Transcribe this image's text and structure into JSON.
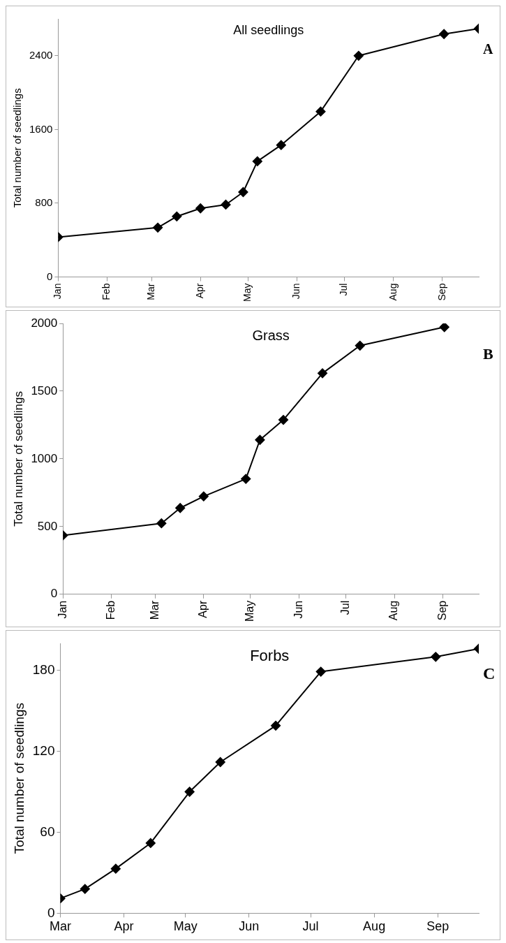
{
  "chart_data": [
    {
      "type": "line",
      "title": "All seedlings",
      "ylabel": "Total number of seedlings",
      "marker": "diamond",
      "annotations": [
        "A"
      ],
      "x": [
        "--01-01",
        "--03-05",
        "--03-17",
        "--04-01",
        "--04-17",
        "--04-28",
        "--05-07",
        "--05-22",
        "--06-16",
        "--07-10",
        "--09-02",
        "--09-24"
      ],
      "series": [
        {
          "color": "#000000",
          "values": [
            433,
            536,
            657,
            745,
            785,
            921,
            1255,
            1431,
            1795,
            2400,
            2635,
            2694
          ]
        }
      ],
      "xlim": [
        "--01-01",
        "--09-24"
      ],
      "xticks": [
        {
          "value": "--01-01",
          "label": "Jan"
        },
        {
          "value": "--02-01",
          "label": "Feb"
        },
        {
          "value": "--03-01",
          "label": "Mar"
        },
        {
          "value": "--04-01",
          "label": "Apr"
        },
        {
          "value": "--05-01",
          "label": "May"
        },
        {
          "value": "--06-01",
          "label": "Jun"
        },
        {
          "value": "--07-01",
          "label": "Jul"
        },
        {
          "value": "--08-01",
          "label": "Aug"
        },
        {
          "value": "--09-01",
          "label": "Sep"
        }
      ],
      "ylim": [
        0,
        2800
      ],
      "yticks": [
        0,
        800,
        1600,
        2400
      ]
    },
    {
      "type": "line",
      "title": "Grass",
      "ylabel": "Total number of seedlings",
      "marker": "diamond",
      "annotations": [
        "B"
      ],
      "x": [
        "--01-01",
        "--03-05",
        "--03-17",
        "--04-01",
        "--04-28",
        "--05-07",
        "--05-22",
        "--06-16",
        "--07-10",
        "--09-02"
      ],
      "series": [
        {
          "color": "#000000",
          "values": [
            435,
            524,
            637,
            723,
            852,
            1140,
            1288,
            1632,
            1836,
            1973
          ]
        }
      ],
      "xlim": [
        "--01-01",
        "--09-24"
      ],
      "xticks": [
        {
          "value": "--01-01",
          "label": "Jan"
        },
        {
          "value": "--02-01",
          "label": "Feb"
        },
        {
          "value": "--03-01",
          "label": "Mar"
        },
        {
          "value": "--04-01",
          "label": "Apr"
        },
        {
          "value": "--05-01",
          "label": "May"
        },
        {
          "value": "--06-01",
          "label": "Jun"
        },
        {
          "value": "--07-01",
          "label": "Jul"
        },
        {
          "value": "--08-01",
          "label": "Aug"
        },
        {
          "value": "--09-01",
          "label": "Sep"
        }
      ],
      "ylim": [
        0,
        2000
      ],
      "yticks": [
        0,
        500,
        1000,
        1500,
        2000
      ]
    },
    {
      "type": "line",
      "title": "Forbs",
      "ylabel": "Total number of seedlings",
      "marker": "diamond",
      "annotations": [
        "C"
      ],
      "x": [
        "--03-01",
        "--03-13",
        "--03-28",
        "--04-14",
        "--05-03",
        "--05-18",
        "--06-14",
        "--07-06",
        "--08-31",
        "--09-21"
      ],
      "series": [
        {
          "color": "#000000",
          "values": [
            11,
            18,
            33,
            52,
            90,
            112,
            139,
            179,
            190,
            196
          ]
        }
      ],
      "xlim": [
        "--03-01",
        "--09-21"
      ],
      "xticks": [
        {
          "value": "--03-01",
          "label": "Mar"
        },
        {
          "value": "--04-01",
          "label": "Apr"
        },
        {
          "value": "--05-01",
          "label": "May"
        },
        {
          "value": "--06-01",
          "label": "Jun"
        },
        {
          "value": "--07-01",
          "label": "Jul"
        },
        {
          "value": "--08-01",
          "label": "Aug"
        },
        {
          "value": "--09-01",
          "label": "Sep"
        }
      ],
      "ylim": [
        0,
        200
      ],
      "yticks": [
        0,
        60,
        120,
        180
      ]
    }
  ]
}
